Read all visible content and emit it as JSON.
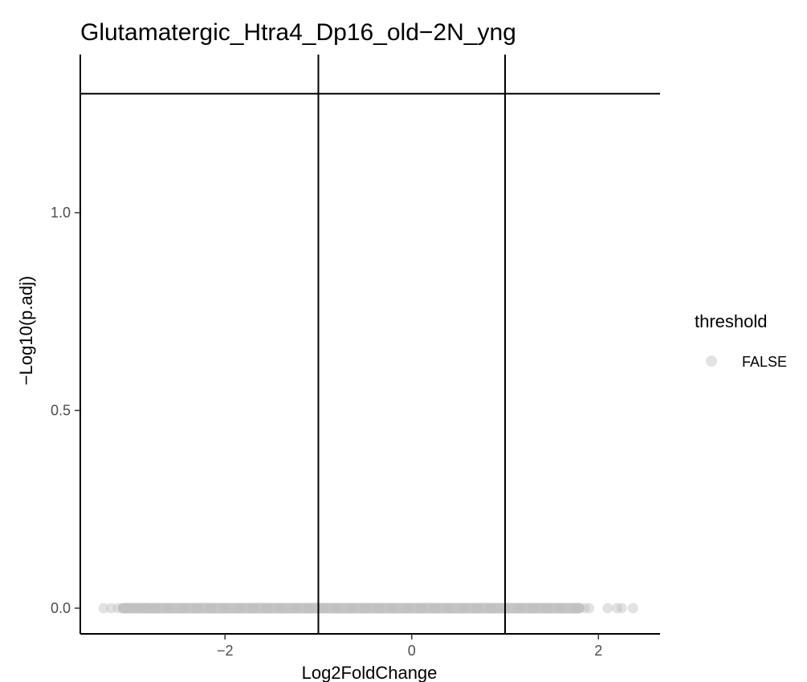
{
  "chart_data": {
    "type": "scatter",
    "title": "Glutamatergic_Htra4_Dp16_old−2N_yng",
    "xlabel": "Log2FoldChange",
    "ylabel": "−Log10(p.adj)",
    "xlim": [
      -3.55,
      2.66
    ],
    "ylim": [
      -0.065,
      1.4
    ],
    "x_ticks": [
      {
        "value": -2,
        "label": "−2"
      },
      {
        "value": 0,
        "label": "0"
      },
      {
        "value": 2,
        "label": "2"
      }
    ],
    "y_ticks": [
      {
        "value": 0.0,
        "label": "0.0"
      },
      {
        "value": 0.5,
        "label": "0.5"
      },
      {
        "value": 1.0,
        "label": "1.0"
      }
    ],
    "reference_lines": {
      "vertical": [
        -1,
        1
      ],
      "horizontal": [
        1.301
      ]
    },
    "grid": false,
    "legend": {
      "title": "threshold",
      "position": "right",
      "entries": [
        {
          "label": "FALSE",
          "color": "#bebebe"
        }
      ]
    },
    "series": [
      {
        "name": "FALSE",
        "color": "#bebebe",
        "x": [
          -3.3,
          -3.22,
          -3.15,
          -3.05,
          -2.95,
          -2.85,
          -2.75,
          -2.6,
          -2.45,
          -2.3,
          -2.15,
          -2.0,
          -1.85,
          -1.7,
          -1.55,
          -1.4,
          -1.25,
          -1.1,
          -0.95,
          -0.8,
          -0.65,
          -0.5,
          -0.35,
          -0.2,
          -0.05,
          0.1,
          0.25,
          0.4,
          0.55,
          0.7,
          0.85,
          1.0,
          1.15,
          1.3,
          1.45,
          1.6,
          1.75,
          1.85,
          1.9,
          2.1,
          2.2,
          2.25,
          2.37
        ],
        "y": [
          0,
          0,
          0,
          0,
          0,
          0,
          0,
          0,
          0,
          0,
          0,
          0,
          0,
          0,
          0,
          0,
          0,
          0,
          0,
          0,
          0,
          0,
          0,
          0,
          0,
          0,
          0,
          0,
          0,
          0,
          0,
          0,
          0,
          0,
          0,
          0,
          0,
          0,
          0,
          0,
          0,
          0,
          0
        ]
      }
    ]
  }
}
